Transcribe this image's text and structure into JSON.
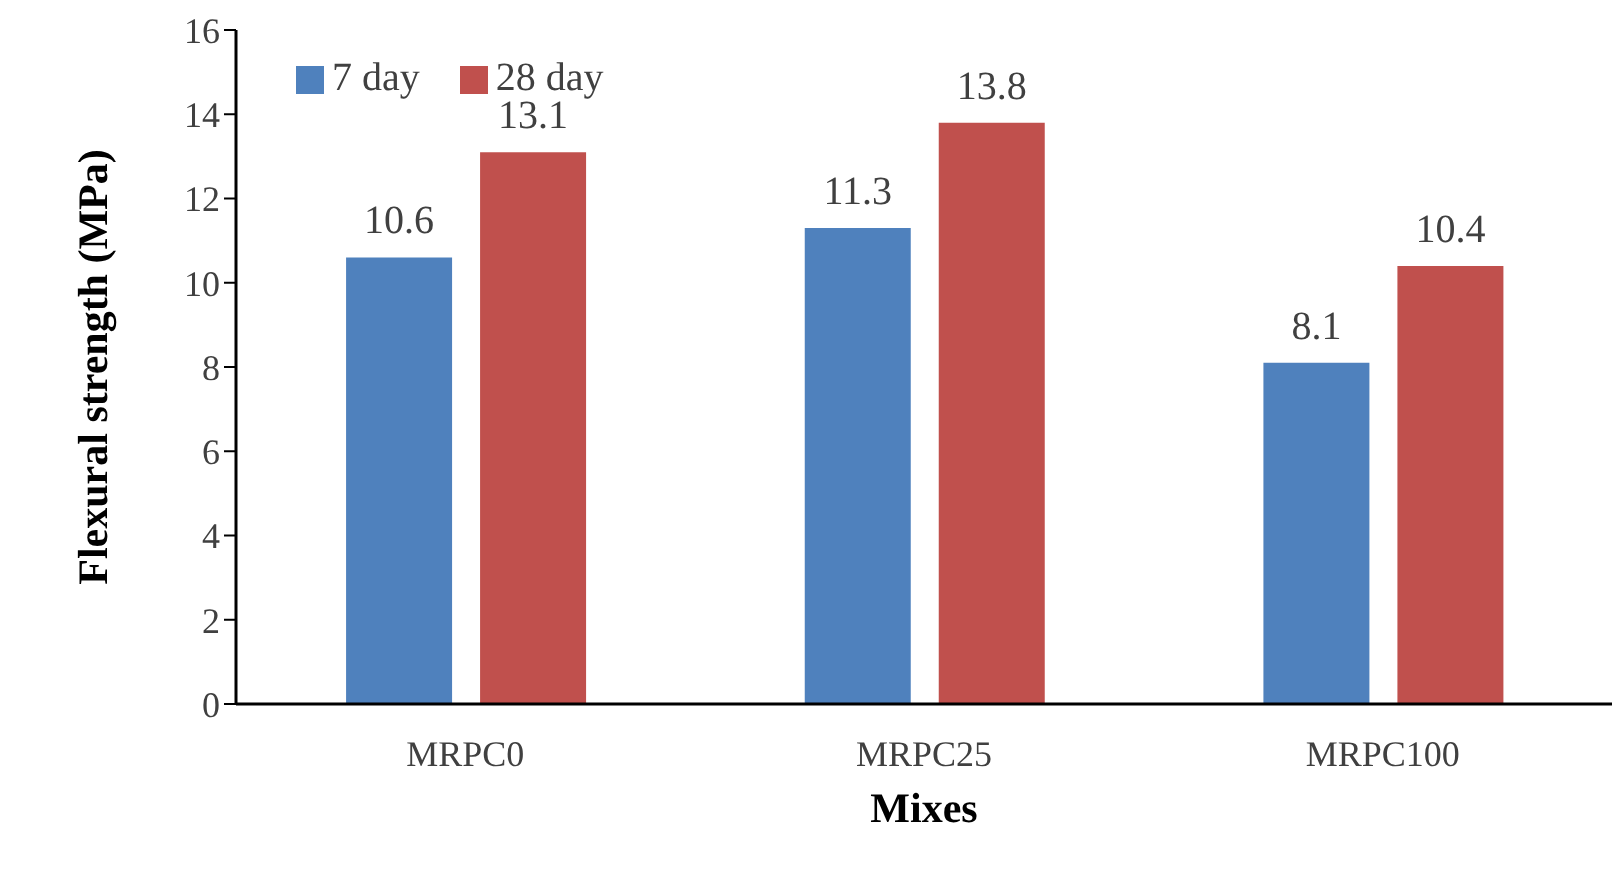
{
  "chart_data": {
    "type": "bar",
    "xlabel": "Mixes",
    "ylabel": "Flexural strength (MPa)",
    "categories": [
      "MRPC0",
      "MRPC25",
      "MRPC100"
    ],
    "series": [
      {
        "name": "7 day",
        "color": "#4f81bd",
        "values": [
          10.6,
          11.3,
          8.1
        ]
      },
      {
        "name": "28 day",
        "color": "#c0504d",
        "values": [
          13.1,
          13.8,
          10.4
        ]
      }
    ],
    "ylim": [
      0,
      16
    ],
    "yticks": [
      0,
      2,
      4,
      6,
      8,
      10,
      12,
      14,
      16
    ],
    "grid": false,
    "legend": "top left",
    "data_labels": true
  }
}
